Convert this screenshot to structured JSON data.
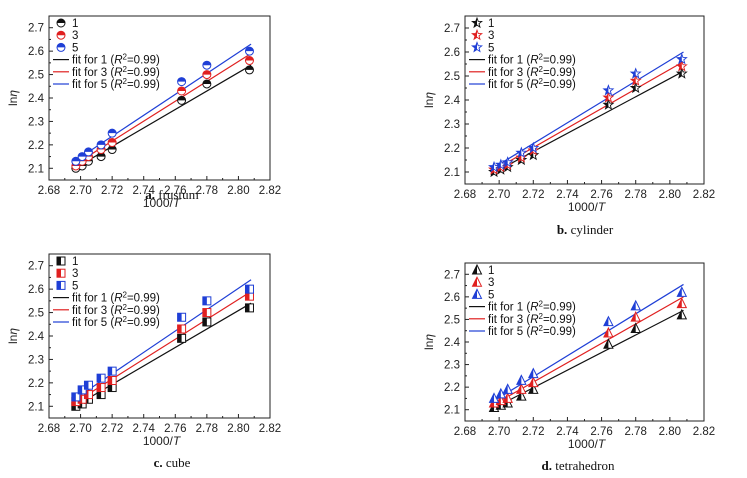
{
  "figure": {
    "colors": {
      "1": "#111111",
      "3": "#e02020",
      "5": "#1f3fd6"
    }
  },
  "chart_data": [
    {
      "type": "scatter",
      "panel_letter": "a.",
      "panel_name": "frustum",
      "marker": "half-circle",
      "xlabel_main": "1000/",
      "xlabel_var": "T",
      "ylabel_main": "ln",
      "ylabel_var": "η",
      "xlim": [
        2.68,
        2.82
      ],
      "ylim": [
        2.05,
        2.75
      ],
      "xticks": [
        "2.68",
        "2.70",
        "2.72",
        "2.74",
        "2.76",
        "2.78",
        "2.80",
        "2.82"
      ],
      "yticks": [
        "2.1",
        "2.2",
        "2.3",
        "2.4",
        "2.5",
        "2.6",
        "2.7"
      ],
      "grid": false,
      "legend_position": "top-left",
      "x": [
        2.697,
        2.701,
        2.705,
        2.713,
        2.72,
        2.764,
        2.78,
        2.807
      ],
      "series": [
        {
          "name": "1",
          "values": [
            2.1,
            2.11,
            2.13,
            2.15,
            2.18,
            2.39,
            2.46,
            2.52
          ]
        },
        {
          "name": "3",
          "values": [
            2.11,
            2.13,
            2.15,
            2.18,
            2.21,
            2.43,
            2.5,
            2.56
          ]
        },
        {
          "name": "5",
          "values": [
            2.13,
            2.15,
            2.17,
            2.2,
            2.25,
            2.47,
            2.54,
            2.6
          ]
        }
      ],
      "fits": [
        {
          "label": "fit for 1",
          "r2_text": "=0.99)",
          "y_at_xmin": 2.095,
          "y_at_xmax": 2.54
        },
        {
          "label": "fit for 3",
          "r2_text": "=0.99)",
          "y_at_xmin": 2.11,
          "y_at_xmax": 2.59
        },
        {
          "label": "fit for 5",
          "r2_text": "=0.99)",
          "y_at_xmin": 2.125,
          "y_at_xmax": 2.63
        }
      ]
    },
    {
      "type": "scatter",
      "panel_letter": "b.",
      "panel_name": "cylinder",
      "marker": "star",
      "xlabel_main": "1000/",
      "xlabel_var": "T",
      "ylabel_main": "ln",
      "ylabel_var": "η",
      "xlim": [
        2.68,
        2.82
      ],
      "ylim": [
        2.05,
        2.75
      ],
      "xticks": [
        "2.68",
        "2.70",
        "2.72",
        "2.74",
        "2.76",
        "2.78",
        "2.80",
        "2.82"
      ],
      "yticks": [
        "2.1",
        "2.2",
        "2.3",
        "2.4",
        "2.5",
        "2.6",
        "2.7"
      ],
      "grid": false,
      "legend_position": "top-left",
      "x": [
        2.697,
        2.701,
        2.705,
        2.713,
        2.72,
        2.764,
        2.78,
        2.807
      ],
      "series": [
        {
          "name": "1",
          "values": [
            2.1,
            2.11,
            2.12,
            2.15,
            2.17,
            2.38,
            2.45,
            2.51
          ]
        },
        {
          "name": "3",
          "values": [
            2.11,
            2.12,
            2.13,
            2.16,
            2.19,
            2.41,
            2.48,
            2.54
          ]
        },
        {
          "name": "5",
          "values": [
            2.12,
            2.13,
            2.14,
            2.18,
            2.2,
            2.44,
            2.51,
            2.57
          ]
        }
      ],
      "fits": [
        {
          "label": "fit for 1",
          "r2_text": "=0.99)",
          "y_at_xmin": 2.09,
          "y_at_xmax": 2.52
        },
        {
          "label": "fit for 3",
          "r2_text": "=0.99)",
          "y_at_xmin": 2.1,
          "y_at_xmax": 2.56
        },
        {
          "label": "fit for 5",
          "r2_text": "=0.99)",
          "y_at_xmin": 2.11,
          "y_at_xmax": 2.6
        }
      ]
    },
    {
      "type": "scatter",
      "panel_letter": "c.",
      "panel_name": "cube",
      "marker": "half-square",
      "xlabel_main": "1000/",
      "xlabel_var": "T",
      "ylabel_main": "ln",
      "ylabel_var": "η",
      "xlim": [
        2.68,
        2.82
      ],
      "ylim": [
        2.05,
        2.75
      ],
      "xticks": [
        "2.68",
        "2.70",
        "2.72",
        "2.74",
        "2.76",
        "2.78",
        "2.80",
        "2.82"
      ],
      "yticks": [
        "2.1",
        "2.2",
        "2.3",
        "2.4",
        "2.5",
        "2.6",
        "2.7"
      ],
      "grid": false,
      "legend_position": "top-left",
      "x": [
        2.697,
        2.701,
        2.705,
        2.713,
        2.72,
        2.764,
        2.78,
        2.807
      ],
      "series": [
        {
          "name": "1",
          "values": [
            2.1,
            2.11,
            2.13,
            2.15,
            2.18,
            2.39,
            2.46,
            2.52
          ]
        },
        {
          "name": "3",
          "values": [
            2.12,
            2.13,
            2.15,
            2.18,
            2.21,
            2.43,
            2.5,
            2.57
          ]
        },
        {
          "name": "5",
          "values": [
            2.14,
            2.17,
            2.19,
            2.22,
            2.25,
            2.48,
            2.55,
            2.6
          ]
        }
      ],
      "fits": [
        {
          "label": "fit for 1",
          "r2_text": "=0.99)",
          "y_at_xmin": 2.095,
          "y_at_xmax": 2.54
        },
        {
          "label": "fit for 3",
          "r2_text": "=0.99)",
          "y_at_xmin": 2.11,
          "y_at_xmax": 2.59
        },
        {
          "label": "fit for 5",
          "r2_text": "=0.99)",
          "y_at_xmin": 2.125,
          "y_at_xmax": 2.64
        }
      ]
    },
    {
      "type": "scatter",
      "panel_letter": "d.",
      "panel_name": "tetrahedron",
      "marker": "half-triangle",
      "xlabel_main": "1000/",
      "xlabel_var": "T",
      "ylabel_main": "ln",
      "ylabel_var": "η",
      "xlim": [
        2.68,
        2.82
      ],
      "ylim": [
        2.05,
        2.75
      ],
      "xticks": [
        "2.68",
        "2.70",
        "2.72",
        "2.74",
        "2.76",
        "2.78",
        "2.80",
        "2.82"
      ],
      "yticks": [
        "2.1",
        "2.2",
        "2.3",
        "2.4",
        "2.5",
        "2.6",
        "2.7"
      ],
      "grid": false,
      "legend_position": "top-left",
      "x": [
        2.697,
        2.701,
        2.705,
        2.713,
        2.72,
        2.764,
        2.78,
        2.807
      ],
      "series": [
        {
          "name": "1",
          "values": [
            2.11,
            2.12,
            2.13,
            2.16,
            2.19,
            2.39,
            2.46,
            2.52
          ]
        },
        {
          "name": "3",
          "values": [
            2.13,
            2.14,
            2.15,
            2.19,
            2.22,
            2.44,
            2.51,
            2.57
          ]
        },
        {
          "name": "5",
          "values": [
            2.15,
            2.17,
            2.19,
            2.23,
            2.26,
            2.49,
            2.56,
            2.62
          ]
        }
      ],
      "fits": [
        {
          "label": "fit for 1",
          "r2_text": "=0.99)",
          "y_at_xmin": 2.1,
          "y_at_xmax": 2.54
        },
        {
          "label": "fit for 3",
          "r2_text": "=0.99)",
          "y_at_xmin": 2.115,
          "y_at_xmax": 2.6
        },
        {
          "label": "fit for 5",
          "r2_text": "=0.99)",
          "y_at_xmin": 2.13,
          "y_at_xmax": 2.655
        }
      ]
    }
  ]
}
